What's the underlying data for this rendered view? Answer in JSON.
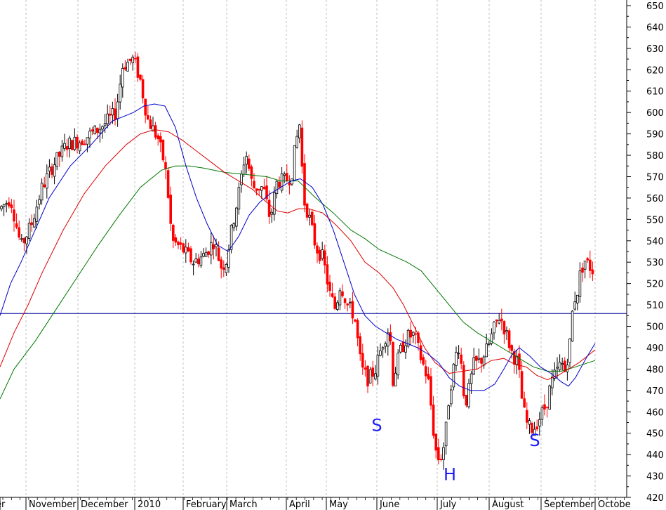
{
  "chart_data": {
    "type": "candlestick",
    "ylim": [
      420,
      650
    ],
    "y_ticks": [
      420,
      430,
      440,
      450,
      460,
      470,
      480,
      490,
      500,
      510,
      520,
      530,
      540,
      550,
      560,
      570,
      580,
      590,
      600,
      610,
      620,
      630,
      640,
      650
    ],
    "x_labels": [
      "er",
      "November",
      "December",
      "2010",
      "February",
      "March",
      "April",
      "May",
      "June",
      "July",
      "August",
      "September",
      "Octobe"
    ],
    "grid": true,
    "colors": {
      "up": "#000000",
      "down": "#ff0000",
      "ma_short": "#0000cc",
      "ma_mid": "#dd0000",
      "ma_long": "#007700",
      "hline": "#000099",
      "annotation": "#1a1aff",
      "grid": "#999999"
    },
    "horizontal_line": {
      "value": 506
    },
    "annotations": [
      {
        "text": "S",
        "near": "June",
        "value": 451
      },
      {
        "text": "H",
        "near": "July",
        "value": 428
      },
      {
        "text": "S",
        "near": "September",
        "value": 444
      }
    ],
    "ohlc_anchors": [
      [
        0,
        555
      ],
      [
        15,
        560
      ],
      [
        30,
        537
      ],
      [
        45,
        548
      ],
      [
        60,
        565
      ],
      [
        75,
        575
      ],
      [
        95,
        585
      ],
      [
        115,
        587
      ],
      [
        135,
        591
      ],
      [
        150,
        595
      ],
      [
        165,
        600
      ],
      [
        175,
        622
      ],
      [
        190,
        625
      ],
      [
        200,
        615
      ],
      [
        210,
        597
      ],
      [
        225,
        588
      ],
      [
        235,
        575
      ],
      [
        240,
        560
      ],
      [
        245,
        540
      ],
      [
        260,
        536
      ],
      [
        275,
        530
      ],
      [
        290,
        533
      ],
      [
        305,
        540
      ],
      [
        315,
        528
      ],
      [
        322,
        530
      ],
      [
        330,
        545
      ],
      [
        340,
        562
      ],
      [
        350,
        582
      ],
      [
        360,
        565
      ],
      [
        375,
        565
      ],
      [
        385,
        550
      ],
      [
        395,
        568
      ],
      [
        405,
        568
      ],
      [
        415,
        570
      ],
      [
        420,
        582
      ],
      [
        425,
        592
      ],
      [
        428,
        596
      ],
      [
        432,
        560
      ],
      [
        440,
        552
      ],
      [
        450,
        537
      ],
      [
        460,
        532
      ],
      [
        470,
        515
      ],
      [
        478,
        508
      ],
      [
        485,
        520
      ],
      [
        495,
        510
      ],
      [
        505,
        505
      ],
      [
        515,
        480
      ],
      [
        525,
        475
      ],
      [
        535,
        480
      ],
      [
        545,
        492
      ],
      [
        555,
        500
      ],
      [
        560,
        475
      ],
      [
        570,
        488
      ],
      [
        580,
        495
      ],
      [
        590,
        496
      ],
      [
        600,
        485
      ],
      [
        610,
        475
      ],
      [
        615,
        460
      ],
      [
        620,
        443
      ],
      [
        625,
        438
      ],
      [
        630,
        440
      ],
      [
        635,
        450
      ],
      [
        640,
        468
      ],
      [
        645,
        478
      ],
      [
        650,
        487
      ],
      [
        655,
        492
      ],
      [
        660,
        470
      ],
      [
        665,
        465
      ],
      [
        675,
        482
      ],
      [
        685,
        484
      ],
      [
        695,
        490
      ],
      [
        705,
        500
      ],
      [
        712,
        505
      ],
      [
        720,
        498
      ],
      [
        730,
        487
      ],
      [
        738,
        483
      ],
      [
        745,
        462
      ],
      [
        752,
        453
      ],
      [
        760,
        452
      ],
      [
        770,
        458
      ],
      [
        778,
        463
      ],
      [
        785,
        473
      ],
      [
        792,
        478
      ],
      [
        800,
        483
      ],
      [
        805,
        479
      ],
      [
        812,
        492
      ],
      [
        817,
        512
      ],
      [
        822,
        515
      ],
      [
        827,
        525
      ],
      [
        833,
        531
      ],
      [
        840,
        528
      ],
      [
        848,
        525
      ]
    ],
    "ma_short": [
      [
        0,
        505
      ],
      [
        15,
        520
      ],
      [
        30,
        530
      ],
      [
        50,
        545
      ],
      [
        70,
        560
      ],
      [
        100,
        575
      ],
      [
        130,
        585
      ],
      [
        160,
        596
      ],
      [
        190,
        600
      ],
      [
        205,
        603
      ],
      [
        220,
        604
      ],
      [
        235,
        603
      ],
      [
        250,
        593
      ],
      [
        265,
        575
      ],
      [
        280,
        560
      ],
      [
        295,
        548
      ],
      [
        310,
        538
      ],
      [
        325,
        535
      ],
      [
        340,
        542
      ],
      [
        355,
        552
      ],
      [
        370,
        558
      ],
      [
        385,
        562
      ],
      [
        400,
        565
      ],
      [
        415,
        568
      ],
      [
        428,
        569
      ],
      [
        445,
        565
      ],
      [
        460,
        557
      ],
      [
        475,
        545
      ],
      [
        490,
        530
      ],
      [
        505,
        515
      ],
      [
        520,
        505
      ],
      [
        535,
        500
      ],
      [
        550,
        497
      ],
      [
        565,
        494
      ],
      [
        580,
        492
      ],
      [
        595,
        490
      ],
      [
        610,
        487
      ],
      [
        625,
        483
      ],
      [
        640,
        476
      ],
      [
        655,
        472
      ],
      [
        670,
        470
      ],
      [
        690,
        470
      ],
      [
        705,
        473
      ],
      [
        718,
        480
      ],
      [
        730,
        487
      ],
      [
        740,
        490
      ],
      [
        755,
        486
      ],
      [
        770,
        481
      ],
      [
        785,
        478
      ],
      [
        800,
        474
      ],
      [
        810,
        472
      ],
      [
        820,
        476
      ],
      [
        835,
        485
      ],
      [
        848,
        492
      ]
    ],
    "ma_mid": [
      [
        0,
        481
      ],
      [
        20,
        497
      ],
      [
        40,
        510
      ],
      [
        60,
        525
      ],
      [
        90,
        545
      ],
      [
        120,
        562
      ],
      [
        150,
        575
      ],
      [
        180,
        585
      ],
      [
        200,
        590
      ],
      [
        220,
        592
      ],
      [
        240,
        591
      ],
      [
        260,
        587
      ],
      [
        280,
        582
      ],
      [
        300,
        577
      ],
      [
        320,
        572
      ],
      [
        340,
        568
      ],
      [
        360,
        564
      ],
      [
        380,
        558
      ],
      [
        395,
        554
      ],
      [
        410,
        553
      ],
      [
        425,
        555
      ],
      [
        440,
        555
      ],
      [
        460,
        553
      ],
      [
        480,
        547
      ],
      [
        500,
        540
      ],
      [
        520,
        530
      ],
      [
        540,
        525
      ],
      [
        560,
        518
      ],
      [
        575,
        510
      ],
      [
        590,
        500
      ],
      [
        605,
        490
      ],
      [
        620,
        483
      ],
      [
        640,
        478
      ],
      [
        660,
        479
      ],
      [
        680,
        480
      ],
      [
        700,
        484
      ],
      [
        718,
        485
      ],
      [
        735,
        482
      ],
      [
        750,
        481
      ],
      [
        765,
        477
      ],
      [
        780,
        475
      ],
      [
        795,
        477
      ],
      [
        810,
        480
      ],
      [
        825,
        483
      ],
      [
        848,
        489
      ]
    ],
    "ma_long": [
      [
        0,
        466
      ],
      [
        20,
        480
      ],
      [
        50,
        493
      ],
      [
        80,
        508
      ],
      [
        110,
        523
      ],
      [
        140,
        538
      ],
      [
        170,
        552
      ],
      [
        200,
        565
      ],
      [
        230,
        573
      ],
      [
        250,
        575
      ],
      [
        270,
        575
      ],
      [
        290,
        574
      ],
      [
        320,
        572
      ],
      [
        350,
        571
      ],
      [
        380,
        570
      ],
      [
        400,
        568
      ],
      [
        425,
        568
      ],
      [
        450,
        560
      ],
      [
        475,
        553
      ],
      [
        500,
        545
      ],
      [
        520,
        541
      ],
      [
        540,
        536
      ],
      [
        560,
        533
      ],
      [
        580,
        530
      ],
      [
        600,
        526
      ],
      [
        620,
        518
      ],
      [
        640,
        510
      ],
      [
        660,
        502
      ],
      [
        680,
        497
      ],
      [
        700,
        493
      ],
      [
        720,
        489
      ],
      [
        740,
        485
      ],
      [
        760,
        481
      ],
      [
        780,
        479
      ],
      [
        800,
        479
      ],
      [
        820,
        481
      ],
      [
        848,
        484
      ]
    ]
  }
}
